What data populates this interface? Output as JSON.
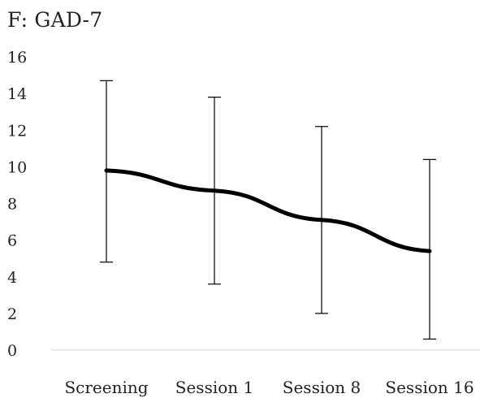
{
  "chart_data": {
    "type": "line",
    "title": "F: GAD-7",
    "xlabel": "",
    "ylabel": "",
    "categories": [
      "Screening",
      "Session 1",
      "Session 8",
      "Session 16"
    ],
    "series": [
      {
        "values": [
          9.8,
          8.7,
          7.1,
          5.4
        ],
        "error_upper": [
          14.7,
          13.8,
          12.2,
          10.4
        ],
        "error_lower": [
          4.8,
          3.6,
          2.0,
          0.6
        ]
      }
    ],
    "ylim": [
      0,
      16
    ],
    "yticks": [
      0,
      2,
      4,
      6,
      8,
      10,
      12,
      14,
      16
    ],
    "grid": false,
    "legend": "none",
    "colors": {
      "line": "#000000",
      "error_bar": "#000000",
      "axis": "#d0d0d0",
      "text": "#222222"
    }
  }
}
